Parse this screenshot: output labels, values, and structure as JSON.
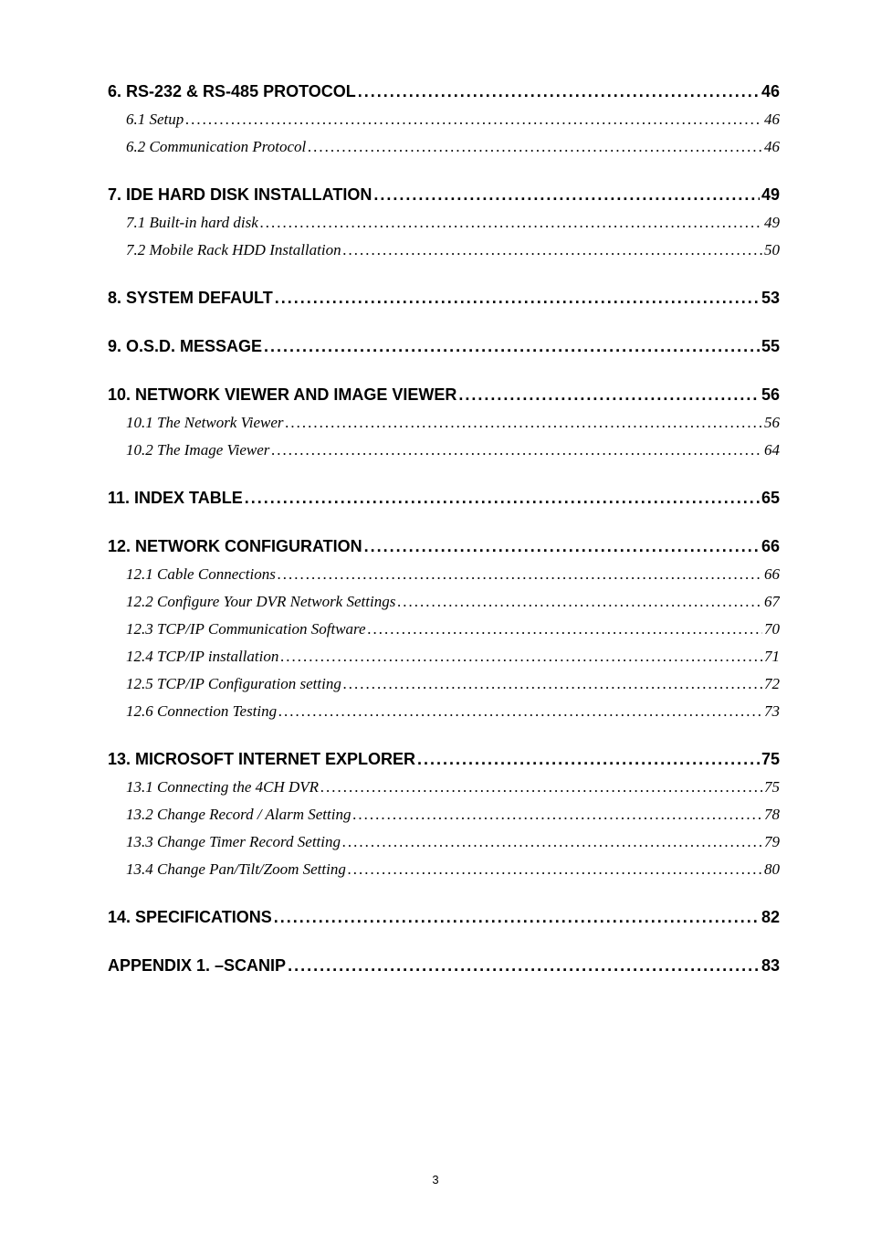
{
  "page_number": "3",
  "toc": [
    {
      "level": 1,
      "title": "6. RS-232 & RS-485 PROTOCOL",
      "page": "46",
      "first": true
    },
    {
      "level": 2,
      "title": "6.1 Setup",
      "page": "46"
    },
    {
      "level": 2,
      "title": "6.2 Communication Protocol",
      "page": "46"
    },
    {
      "level": 1,
      "title": "7. IDE HARD DISK INSTALLATION",
      "page": "49"
    },
    {
      "level": 2,
      "title": "7.1 Built-in hard disk",
      "page": "49"
    },
    {
      "level": 2,
      "title": "7.2 Mobile Rack HDD Installation",
      "page": "50"
    },
    {
      "level": 1,
      "title": "8. SYSTEM DEFAULT",
      "page": "53"
    },
    {
      "level": 1,
      "title": "9. O.S.D. MESSAGE",
      "page": "55"
    },
    {
      "level": 1,
      "title": "10. NETWORK VIEWER AND IMAGE VIEWER",
      "page": "56"
    },
    {
      "level": 2,
      "title": "10.1 The Network Viewer",
      "page": "56"
    },
    {
      "level": 2,
      "title": "10.2 The Image Viewer",
      "page": "64"
    },
    {
      "level": 1,
      "title": "11. INDEX TABLE",
      "page": "65"
    },
    {
      "level": 1,
      "title": "12. NETWORK CONFIGURATION",
      "page": "66"
    },
    {
      "level": 2,
      "title": "12.1 Cable Connections",
      "page": "66"
    },
    {
      "level": 2,
      "title": "12.2 Configure Your DVR Network Settings",
      "page": "67"
    },
    {
      "level": 2,
      "title": "12.3 TCP/IP Communication Software",
      "page": "70"
    },
    {
      "level": 2,
      "title": "12.4 TCP/IP installation",
      "page": "71"
    },
    {
      "level": 2,
      "title": "12.5 TCP/IP Configuration setting",
      "page": "72"
    },
    {
      "level": 2,
      "title": "12.6 Connection Testing",
      "page": "73"
    },
    {
      "level": 1,
      "title": "13. MICROSOFT INTERNET EXPLORER",
      "page": "75"
    },
    {
      "level": 2,
      "title": "13.1 Connecting the 4CH DVR",
      "page": "75"
    },
    {
      "level": 2,
      "title": "13.2 Change Record / Alarm Setting",
      "page": "78"
    },
    {
      "level": 2,
      "title": "13.3 Change Timer Record Setting",
      "page": "79"
    },
    {
      "level": 2,
      "title": "13.4 Change Pan/Tilt/Zoom Setting",
      "page": "80"
    },
    {
      "level": 1,
      "title": "14. SPECIFICATIONS",
      "page": "82"
    },
    {
      "level": 1,
      "title": "APPENDIX 1. –SCANIP",
      "page": "83"
    }
  ]
}
